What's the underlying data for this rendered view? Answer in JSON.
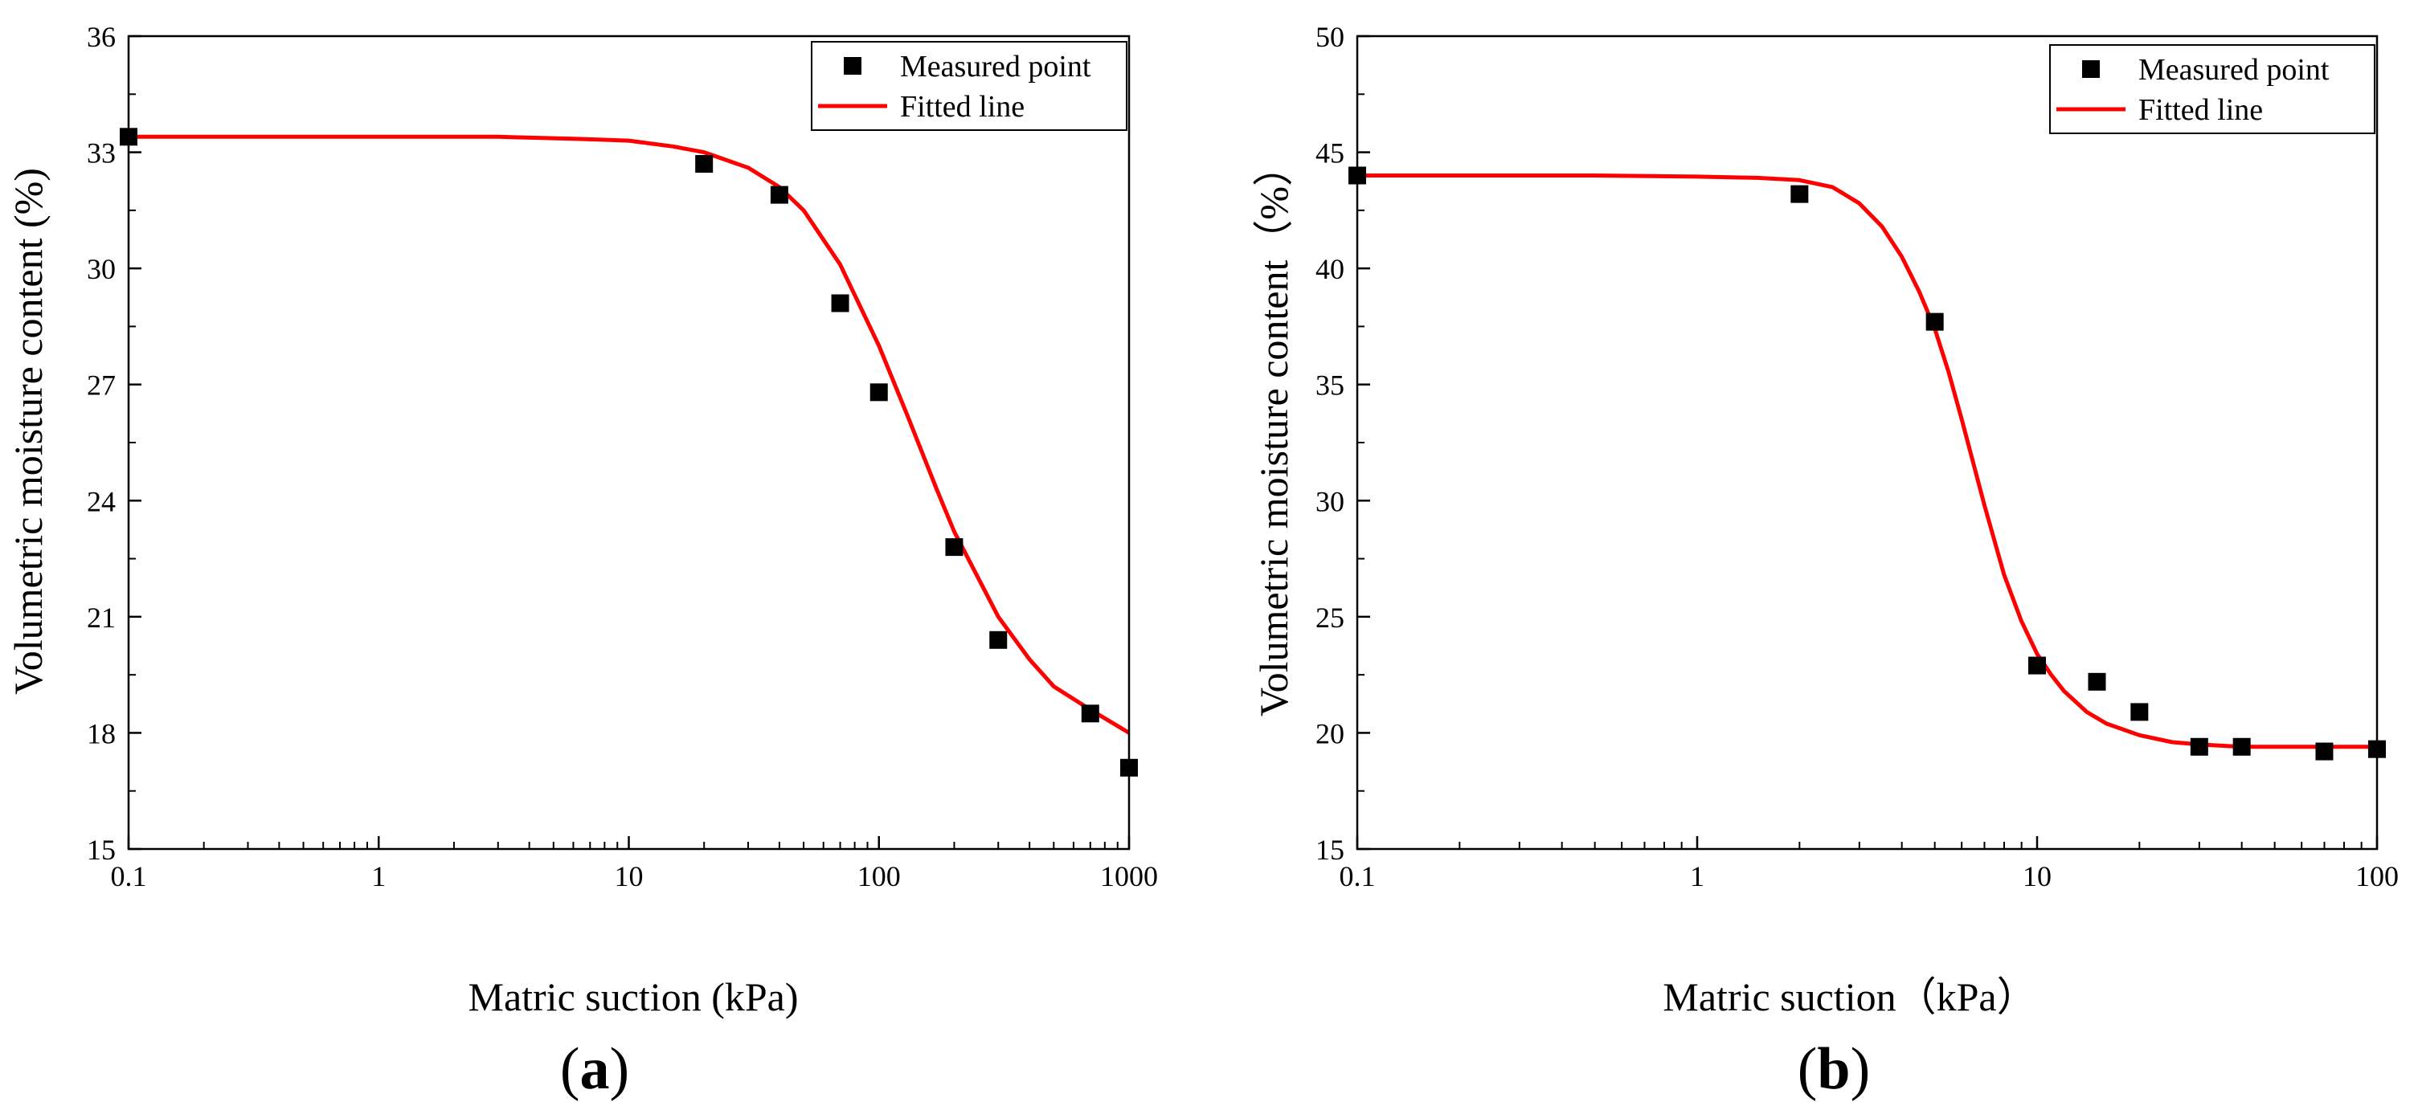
{
  "figure": {
    "colors": {
      "fit": "#ff0000",
      "marker": "#000000",
      "axis": "#000000"
    }
  },
  "chart_data": [
    {
      "type": "scatter",
      "id": "a",
      "panel_label": {
        "open": "(",
        "letter": "a",
        "close": ")"
      },
      "xlabel": "Matric suction (kPa)",
      "ylabel": "Volumetric moisture content (%)",
      "xscale": "log",
      "xlim": [
        0.1,
        1000
      ],
      "ylim": [
        15,
        36
      ],
      "xticks": [
        0.1,
        1,
        10,
        100,
        1000
      ],
      "xtick_labels": [
        "0.1",
        "1",
        "10",
        "100",
        "1000"
      ],
      "yticks": [
        15,
        18,
        21,
        24,
        27,
        30,
        33,
        36
      ],
      "ytick_labels": [
        "15",
        "18",
        "21",
        "24",
        "27",
        "30",
        "33",
        "36"
      ],
      "legend": {
        "placement": "top-right",
        "entries": [
          {
            "label": "Measured point",
            "kind": "marker"
          },
          {
            "label": "Fitted line",
            "kind": "line"
          }
        ]
      },
      "series": [
        {
          "name": "Measured point",
          "kind": "scatter",
          "x": [
            0.1,
            20,
            40,
            70,
            100,
            200,
            300,
            700,
            1000
          ],
          "y": [
            33.4,
            32.7,
            31.9,
            29.1,
            26.8,
            22.8,
            20.4,
            18.5,
            17.1
          ]
        },
        {
          "name": "Fitted line",
          "kind": "line",
          "x": [
            0.1,
            1,
            3,
            6,
            10,
            15,
            20,
            30,
            40,
            50,
            70,
            100,
            130,
            170,
            200,
            300,
            400,
            500,
            700,
            1000
          ],
          "y": [
            33.4,
            33.4,
            33.4,
            33.35,
            33.3,
            33.15,
            33.0,
            32.6,
            32.1,
            31.5,
            30.1,
            28.0,
            26.2,
            24.3,
            23.2,
            21.0,
            19.9,
            19.2,
            18.6,
            18.0
          ]
        }
      ]
    },
    {
      "type": "scatter",
      "id": "b",
      "panel_label": {
        "open": "(",
        "letter": "b",
        "close": ")"
      },
      "xlabel": "Matric suction（kPa）",
      "ylabel": "Volumetric moisture content（%）",
      "xscale": "log",
      "xlim": [
        0.1,
        100
      ],
      "ylim": [
        15,
        50
      ],
      "xticks": [
        0.1,
        1,
        10,
        100
      ],
      "xtick_labels": [
        "0.1",
        "1",
        "10",
        "100"
      ],
      "yticks": [
        15,
        20,
        25,
        30,
        35,
        40,
        45,
        50
      ],
      "ytick_labels": [
        "15",
        "20",
        "25",
        "30",
        "35",
        "40",
        "45",
        "50"
      ],
      "legend": {
        "placement": "top-right",
        "entries": [
          {
            "label": "Measured point",
            "kind": "marker"
          },
          {
            "label": "Fitted line",
            "kind": "line"
          }
        ]
      },
      "series": [
        {
          "name": "Measured point",
          "kind": "scatter",
          "x": [
            0.1,
            2,
            5,
            10,
            15,
            20,
            30,
            40,
            70,
            100
          ],
          "y": [
            44.0,
            43.2,
            37.7,
            22.9,
            22.2,
            20.9,
            19.4,
            19.4,
            19.2,
            19.3
          ]
        },
        {
          "name": "Fitted line",
          "kind": "line",
          "x": [
            0.1,
            0.5,
            1,
            1.5,
            2,
            2.5,
            3,
            3.5,
            4,
            4.5,
            5,
            5.5,
            6,
            7,
            8,
            9,
            10,
            11,
            12,
            14,
            16,
            20,
            25,
            30,
            40,
            60,
            100
          ],
          "y": [
            44.0,
            44.0,
            43.95,
            43.9,
            43.8,
            43.5,
            42.8,
            41.8,
            40.5,
            39.0,
            37.4,
            35.5,
            33.5,
            29.8,
            26.8,
            24.8,
            23.4,
            22.5,
            21.8,
            20.9,
            20.4,
            19.9,
            19.6,
            19.5,
            19.4,
            19.4,
            19.4
          ]
        }
      ]
    }
  ]
}
